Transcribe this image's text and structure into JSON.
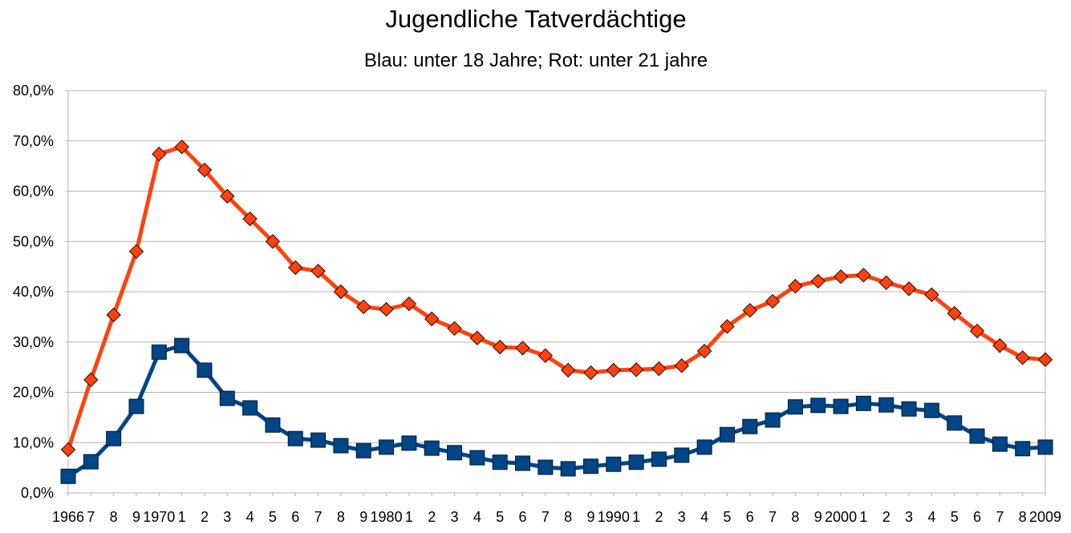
{
  "chart_data": {
    "type": "line",
    "title": "Jugendliche Tatverdächtige",
    "subtitle": "Blau: unter 18 Jahre; Rot: unter 21 jahre",
    "xlabel": "",
    "ylabel": "",
    "categories": [
      "1966",
      "7",
      "8",
      "9",
      "1970",
      "1",
      "2",
      "3",
      "4",
      "5",
      "6",
      "7",
      "8",
      "9",
      "1980",
      "1",
      "2",
      "3",
      "4",
      "5",
      "6",
      "7",
      "8",
      "9",
      "1990",
      "1",
      "2",
      "3",
      "4",
      "5",
      "6",
      "7",
      "8",
      "9",
      "2000",
      "1",
      "2",
      "3",
      "4",
      "5",
      "6",
      "7",
      "8",
      "2009"
    ],
    "ylim": [
      0,
      80
    ],
    "yticks": [
      0,
      10,
      20,
      30,
      40,
      50,
      60,
      70,
      80
    ],
    "ytick_labels": [
      "0,0%",
      "10,0%",
      "20,0%",
      "30,0%",
      "40,0%",
      "50,0%",
      "60,0%",
      "70,0%",
      "80,0%"
    ],
    "grid": true,
    "legend": "none",
    "series": [
      {
        "color": "#004586",
        "marker": "square",
        "values": [
          3.3,
          6.2,
          10.8,
          17.2,
          28.0,
          29.3,
          24.4,
          18.8,
          16.9,
          13.5,
          10.8,
          10.5,
          9.4,
          8.4,
          9.1,
          9.9,
          8.9,
          8.0,
          7.0,
          6.1,
          5.9,
          5.1,
          4.8,
          5.3,
          5.7,
          6.1,
          6.7,
          7.5,
          9.1,
          11.6,
          13.2,
          14.5,
          17.1,
          17.4,
          17.2,
          17.8,
          17.5,
          16.7,
          16.4,
          13.9,
          11.3,
          9.7,
          8.8,
          9.1
        ]
      },
      {
        "color": "#ff420e",
        "marker": "diamond",
        "values": [
          8.6,
          22.5,
          35.4,
          48.0,
          67.4,
          68.8,
          64.2,
          59.0,
          54.5,
          50.0,
          44.8,
          44.1,
          40.0,
          37.0,
          36.5,
          37.6,
          34.6,
          32.7,
          30.8,
          29.0,
          28.8,
          27.3,
          24.4,
          23.9,
          24.4,
          24.5,
          24.7,
          25.3,
          28.2,
          33.1,
          36.3,
          38.1,
          41.1,
          42.1,
          43.0,
          43.3,
          41.8,
          40.6,
          39.4,
          35.7,
          32.2,
          29.3,
          26.9,
          26.5
        ]
      }
    ]
  }
}
